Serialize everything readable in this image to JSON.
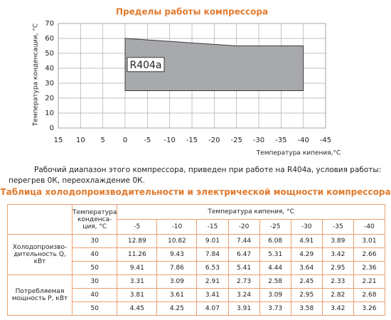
{
  "chart_data": {
    "type": "polygon",
    "title": "Пределы работы компрессора",
    "x_label": "Температура кипения,°С",
    "y_label": "Температура конденсации, °С",
    "x": [
      0,
      -25,
      -40,
      -40,
      0
    ],
    "values": [
      60,
      55,
      55,
      25,
      25
    ],
    "color": "#a7a9ac",
    "edge_color": "#3a3a3a",
    "xlim": [
      15,
      -45
    ],
    "xticks": [
      15,
      10,
      5,
      0,
      -5,
      -10,
      -15,
      -20,
      -25,
      -30,
      -35,
      -40,
      -45
    ],
    "ylim": [
      0,
      70
    ],
    "yticks": [
      0,
      10,
      20,
      30,
      40,
      50,
      60,
      70
    ],
    "grid": true,
    "annotation": "R404a"
  },
  "paragraph": "Рабочий диапазон этого компрессора, приведен при работе на R404a, условия работы: перегрев 0К, переохлаждение 0К.",
  "table": {
    "title": "Таблица холодопроизводительности и электрической мощности компрессора",
    "condensing_header": "Температура конденса-ция, °С",
    "evaporating_header": "Температура кипения, °С",
    "columns": [
      -5,
      -10,
      -15,
      -20,
      -25,
      -30,
      -35,
      -40
    ],
    "groups": [
      {
        "name": "Холодопроизво-дительность Q, кВт",
        "rows": [
          {
            "temp": 30,
            "values": [
              12.89,
              10.82,
              9.01,
              7.44,
              6.08,
              4.91,
              3.89,
              3.01
            ]
          },
          {
            "temp": 40,
            "values": [
              11.26,
              9.43,
              7.84,
              6.47,
              5.31,
              4.29,
              3.42,
              2.66
            ]
          },
          {
            "temp": 50,
            "values": [
              9.41,
              7.86,
              6.53,
              5.41,
              4.44,
              3.64,
              2.95,
              2.36
            ]
          }
        ]
      },
      {
        "name": "Потребляемая мощность Р, кВт",
        "rows": [
          {
            "temp": 30,
            "values": [
              3.31,
              3.09,
              2.91,
              2.73,
              2.58,
              2.45,
              2.33,
              2.21
            ]
          },
          {
            "temp": 40,
            "values": [
              3.81,
              3.61,
              3.41,
              3.24,
              3.09,
              2.95,
              2.82,
              2.68
            ]
          },
          {
            "temp": 50,
            "values": [
              4.45,
              4.25,
              4.07,
              3.91,
              3.73,
              3.58,
              3.42,
              3.26
            ]
          }
        ]
      }
    ]
  }
}
